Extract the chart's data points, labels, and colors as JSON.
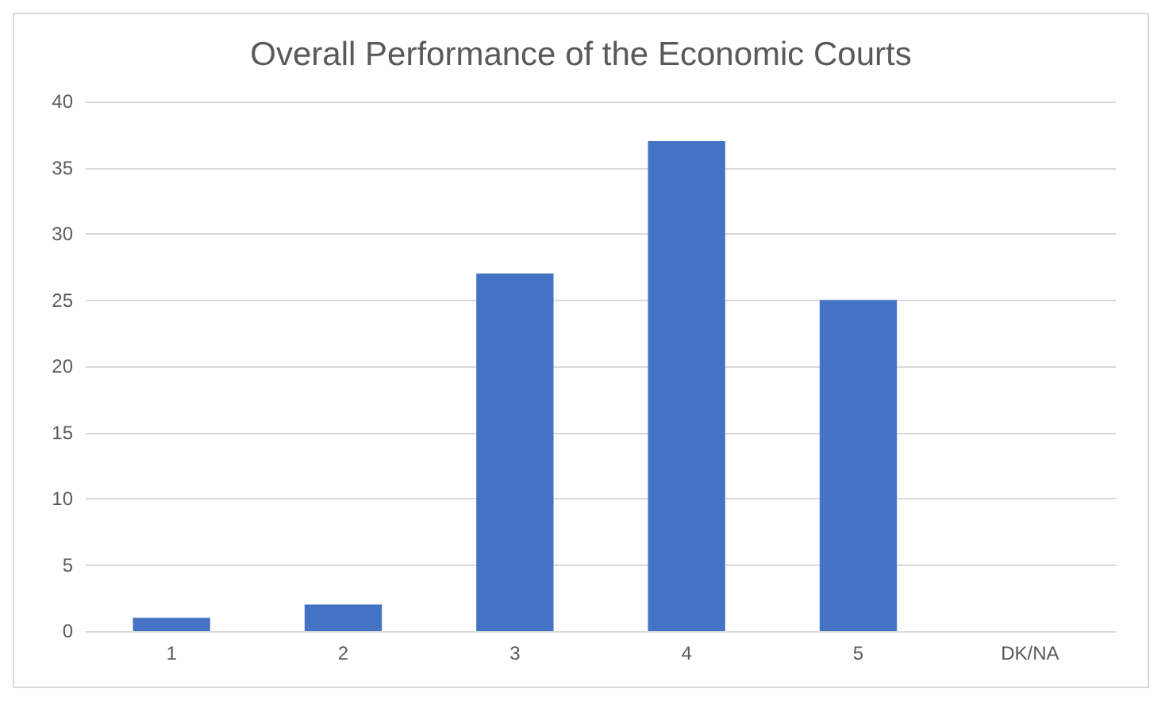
{
  "chart_data": {
    "type": "bar",
    "title": "Overall Performance of the Economic Courts",
    "categories": [
      "1",
      "2",
      "3",
      "4",
      "5",
      "DK/NA"
    ],
    "values": [
      1,
      2,
      27,
      37,
      25,
      0
    ],
    "color": "#4472c4",
    "ylim": [
      0,
      40
    ],
    "yticks": [
      0,
      5,
      10,
      15,
      20,
      25,
      30,
      35,
      40
    ],
    "grid": "y"
  }
}
